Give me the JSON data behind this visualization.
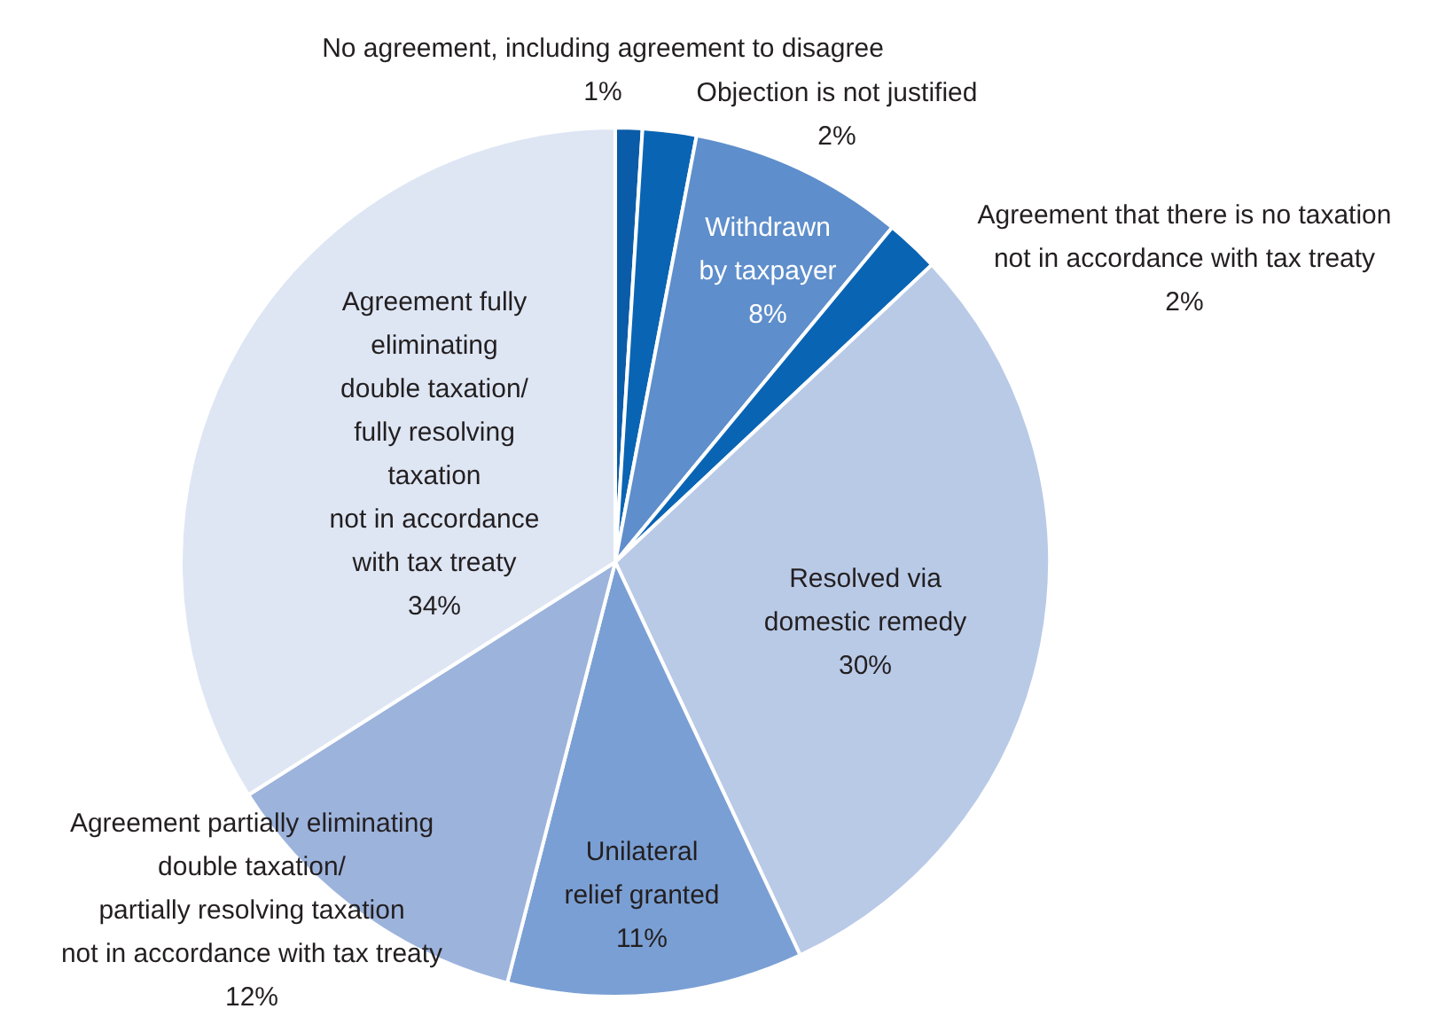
{
  "chart_data": {
    "type": "pie",
    "categories": [
      "No agreement, including agreement to disagree",
      "Objection is not justified",
      "Withdrawn\nby taxpayer",
      "Agreement that there is no taxation\nnot in accordance with tax treaty",
      "Resolved via\ndomestic remedy",
      "Unilateral\nrelief granted",
      "Agreement partially eliminating\ndouble taxation/\npartially resolving taxation\nnot in accordance with tax treaty",
      "Agreement fully\neliminating\ndouble taxation/\nfully resolving\ntaxation\nnot in accordance\nwith tax treaty"
    ],
    "values": [
      1,
      2,
      8,
      2,
      30,
      11,
      12,
      34
    ],
    "colors": [
      "#0b5ca8",
      "#0a64b4",
      "#5e8ecb",
      "#0a64b4",
      "#b9cae7",
      "#7a9fd4",
      "#9cb3dc",
      "#dee6f4"
    ],
    "value_labels": [
      "1%",
      "2%",
      "8%",
      "2%",
      "30%",
      "11%",
      "12%",
      "34%"
    ]
  }
}
